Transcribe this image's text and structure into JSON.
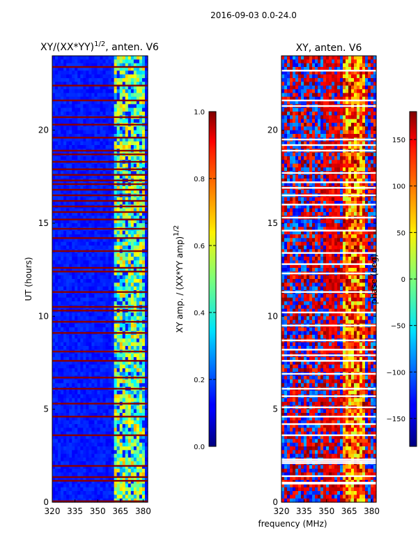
{
  "figure": {
    "main_title": "2016-09-03 0.0-24.0",
    "xlabel_shared": "frequency (MHz)"
  },
  "chart_data": [
    {
      "type": "heatmap",
      "title": "XY/(XX*YY)",
      "title_superscript": "1/2",
      "title_suffix": ", anten. V6",
      "xlabel": "",
      "ylabel": "UT (hours)",
      "xlim": [
        320,
        383
      ],
      "ylim": [
        0,
        24
      ],
      "xticks": [
        320,
        335,
        350,
        365,
        380
      ],
      "yticks": [
        0,
        5,
        10,
        15,
        20
      ],
      "colormap": "jet",
      "colorbar": {
        "label": "XY amp. / (XX*YY amp)",
        "label_superscript": "1/2",
        "range": [
          0.0,
          1.0
        ],
        "ticks": [
          "0.0",
          "0.2",
          "0.4",
          "0.6",
          "0.8",
          "1.0"
        ]
      },
      "background_value": 0.12,
      "bright_band_mhz": [
        360,
        381
      ],
      "saturated_rows_hours": [
        0.05,
        1.15,
        1.35,
        1.95,
        3.6,
        4.6,
        5.3,
        6.1,
        6.7,
        7.6,
        8.1,
        9.1,
        9.7,
        10.3,
        10.5,
        11.3,
        12.4,
        12.6,
        13.5,
        14.2,
        14.7,
        15.2,
        15.6,
        15.9,
        16.2,
        16.5,
        16.8,
        17.1,
        17.3,
        17.6,
        17.9,
        18.3,
        18.7,
        18.9,
        19.6,
        20.3,
        20.7,
        21.6,
        22.4,
        23.4
      ]
    },
    {
      "type": "heatmap",
      "title": "XY, anten. V6",
      "xlabel": "",
      "ylabel": "",
      "xlim": [
        320,
        383
      ],
      "ylim": [
        0,
        24
      ],
      "xticks": [
        320,
        335,
        350,
        365,
        380
      ],
      "yticks": [
        0,
        5,
        10,
        15,
        20
      ],
      "colormap": "jet",
      "colorbar": {
        "label": "phase (deg)",
        "range": [
          -180,
          180
        ],
        "ticks": [
          "−150",
          "−100",
          "−50",
          "0",
          "50",
          "100",
          "150"
        ]
      },
      "white_rows_hours": [
        1.0,
        1.05,
        1.4,
        2.1,
        2.2,
        2.3,
        3.6,
        4.2,
        4.6,
        5.1,
        5.7,
        6.1,
        6.9,
        7.6,
        7.9,
        8.2,
        8.7,
        9.5,
        10.2,
        11.3,
        12.3,
        12.8,
        13.4,
        14.6,
        15.3,
        16.0,
        16.5,
        16.9,
        17.2,
        17.7,
        18.9,
        19.2,
        19.5,
        21.3,
        21.6,
        23.2
      ]
    }
  ]
}
